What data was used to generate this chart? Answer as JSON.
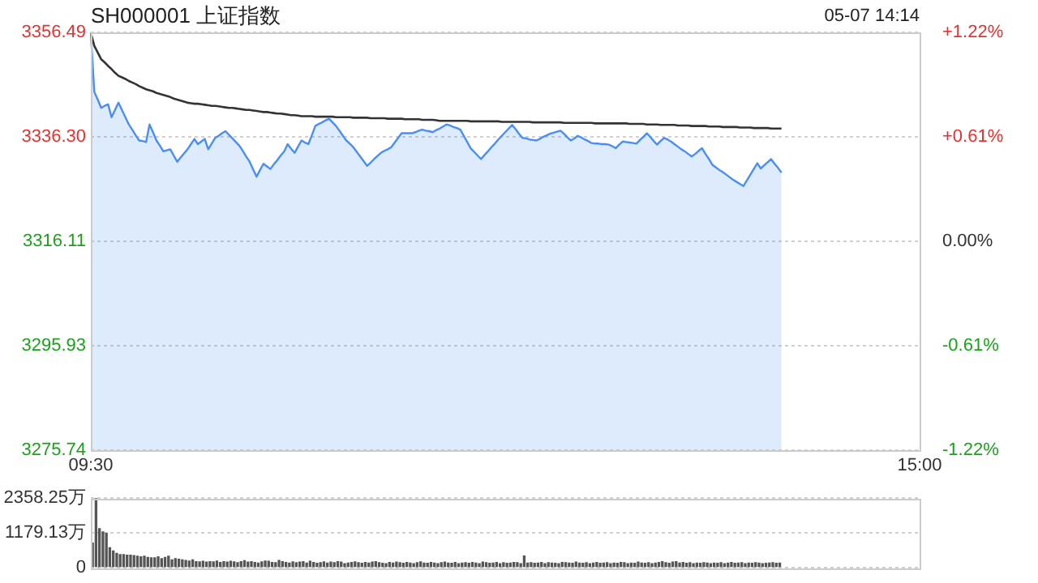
{
  "chart_data": [
    {
      "type": "line",
      "title": "SH000001 上证指数",
      "subtitle": "05-07 14:14",
      "categories": [
        "09:30",
        null,
        null,
        null,
        null,
        null,
        null,
        null,
        null,
        null,
        null,
        null,
        null,
        null,
        null,
        null,
        null,
        null,
        null,
        null,
        null,
        null,
        null,
        null,
        null,
        null,
        null,
        null,
        null,
        null,
        null,
        null,
        null,
        null,
        null,
        null,
        null,
        null,
        null,
        null,
        null,
        null,
        null,
        null,
        null,
        null,
        null,
        null,
        null,
        null,
        null,
        null,
        null,
        null,
        null,
        null,
        null,
        null,
        null,
        null,
        null,
        null,
        null,
        null,
        null,
        null,
        null,
        null,
        null,
        null,
        null,
        null,
        null,
        null,
        null,
        null,
        null,
        null,
        null,
        null,
        null,
        null,
        null,
        null,
        null,
        null,
        null,
        null,
        null,
        null,
        null,
        null,
        null,
        null,
        null,
        null,
        null,
        null,
        null,
        null,
        null,
        null,
        null,
        null,
        null,
        null,
        null,
        null,
        null,
        null,
        null,
        null,
        null,
        null,
        null,
        null,
        null,
        null,
        null,
        null,
        null,
        null,
        null,
        null,
        null,
        null,
        null,
        null,
        null,
        null,
        null,
        null,
        null,
        null,
        null,
        null,
        null,
        null,
        null,
        null,
        null,
        null,
        null,
        null,
        null,
        null,
        null,
        null,
        null,
        null,
        null,
        null,
        null,
        null,
        null,
        null,
        null,
        null,
        null,
        null,
        null,
        null,
        null,
        null,
        null,
        null,
        null,
        null,
        null,
        null,
        null,
        null,
        null,
        null,
        null,
        null,
        null,
        null,
        null,
        null,
        null,
        null,
        null,
        null,
        null,
        null,
        null,
        null,
        null,
        null,
        null,
        null,
        null,
        null,
        null,
        null,
        null,
        null,
        null,
        null,
        null,
        null,
        null,
        null,
        null,
        null,
        null,
        null,
        null,
        null,
        null,
        null,
        null,
        null,
        null,
        null,
        null,
        null,
        null,
        null,
        null,
        null,
        null,
        null,
        null,
        null,
        null,
        null,
        null,
        null,
        null,
        null,
        null,
        null,
        null,
        null,
        null,
        null,
        null,
        null,
        "15:00"
      ],
      "series": [
        {
          "type": "area",
          "color": "#4a8ef5",
          "values": [
            3356.4,
            3345.0,
            3343.5,
            3341.9,
            3342.3,
            3342.6,
            3340.1,
            3341.5,
            3342.9,
            3341.5,
            3340.1,
            3338.7,
            3337.7,
            3336.6,
            3335.6,
            3335.5,
            3335.3,
            3338.7,
            3337.2,
            3335.6,
            3334.6,
            3333.5,
            3333.7,
            3333.9,
            3332.7,
            3331.5,
            3332.3,
            3333.1,
            3333.9,
            3334.9,
            3335.9,
            3334.9,
            3335.4,
            3335.9,
            3333.9,
            3335.0,
            3336.1,
            3336.5,
            3337.0,
            3337.4,
            3336.7,
            3336.0,
            3335.3,
            3334.6,
            3333.6,
            3332.5,
            3331.5,
            3330.0,
            3328.6,
            3329.9,
            3331.1,
            3330.6,
            3330.1,
            3331.0,
            3331.8,
            3332.7,
            3333.5,
            3334.9,
            3334.0,
            3333.2,
            3334.4,
            3335.6,
            3335.2,
            3334.9,
            3336.6,
            3338.4,
            3338.8,
            3339.1,
            3339.5,
            3339.8,
            3339.1,
            3338.4,
            3337.5,
            3336.5,
            3335.6,
            3335.0,
            3334.3,
            3333.4,
            3332.5,
            3331.6,
            3330.7,
            3331.3,
            3332.0,
            3332.6,
            3333.2,
            3333.6,
            3333.9,
            3334.3,
            3335.2,
            3336.1,
            3337.0,
            3337.0,
            3337.0,
            3337.0,
            3337.2,
            3337.5,
            3337.7,
            3337.5,
            3337.4,
            3337.2,
            3337.6,
            3337.9,
            3338.3,
            3338.7,
            3338.5,
            3338.2,
            3338.0,
            3337.7,
            3336.5,
            3335.3,
            3334.1,
            3333.4,
            3332.7,
            3332.0,
            3332.8,
            3333.5,
            3334.3,
            3335.0,
            3335.8,
            3336.5,
            3337.2,
            3337.9,
            3338.6,
            3337.8,
            3336.9,
            3336.1,
            3336.0,
            3335.8,
            3335.7,
            3335.6,
            3335.9,
            3336.3,
            3336.6,
            3336.9,
            3337.1,
            3337.3,
            3337.5,
            3336.9,
            3336.2,
            3335.6,
            3336.0,
            3336.5,
            3336.2,
            3335.8,
            3335.5,
            3335.1,
            3335.0,
            3335.0,
            3334.9,
            3334.9,
            3334.8,
            3334.5,
            3334.1,
            3334.8,
            3335.4,
            3335.3,
            3335.2,
            3335.1,
            3335.0,
            3335.7,
            3336.3,
            3337.0,
            3336.3,
            3335.5,
            3334.8,
            3335.5,
            3336.1,
            3335.8,
            3335.4,
            3334.9,
            3334.4,
            3333.9,
            3333.5,
            3333.0,
            3332.5,
            3333.0,
            3333.6,
            3334.1,
            3333.0,
            3332.0,
            3330.9,
            3330.4,
            3329.9,
            3329.5,
            3329.0,
            3328.5,
            3328.0,
            3327.6,
            3327.2,
            3326.8,
            3327.9,
            3329.0,
            3330.1,
            3331.2,
            3330.2,
            3330.8,
            3331.4,
            3332.0,
            3331.1,
            3330.3,
            3329.4,
            null,
            null,
            null,
            null,
            null,
            null,
            null,
            null,
            null,
            null,
            null,
            null,
            null,
            null,
            null,
            null,
            null,
            null,
            null,
            null,
            null,
            null,
            null,
            null,
            null,
            null,
            null,
            null,
            null,
            null,
            null,
            null,
            null,
            null,
            null,
            null,
            null,
            null,
            null,
            null
          ]
        },
        {
          "type": "line",
          "color": "#333333",
          "values": [
            3356.4,
            3353.9,
            3352.6,
            3351.3,
            3350.7,
            3350.0,
            3349.4,
            3348.7,
            3348.1,
            3347.8,
            3347.5,
            3347.1,
            3346.8,
            3346.5,
            3346.1,
            3345.8,
            3345.5,
            3345.3,
            3345.1,
            3344.8,
            3344.6,
            3344.4,
            3344.2,
            3344.0,
            3343.7,
            3343.5,
            3343.3,
            3343.1,
            3342.9,
            3342.8,
            3342.7,
            3342.7,
            3342.6,
            3342.5,
            3342.4,
            3342.3,
            3342.3,
            3342.2,
            3342.1,
            3342.0,
            3341.9,
            3341.9,
            3341.8,
            3341.7,
            3341.6,
            3341.5,
            3341.5,
            3341.4,
            3341.3,
            3341.2,
            3341.1,
            3341.1,
            3341.0,
            3340.9,
            3340.8,
            3340.8,
            3340.7,
            3340.6,
            3340.5,
            3340.5,
            3340.4,
            3340.3,
            3340.3,
            3340.3,
            3340.3,
            3340.2,
            3340.2,
            3340.2,
            3340.2,
            3340.2,
            3340.2,
            3340.1,
            3340.1,
            3340.1,
            3340.1,
            3340.1,
            3340.0,
            3340.0,
            3340.0,
            3340.0,
            3340.0,
            3339.9,
            3339.9,
            3339.9,
            3339.9,
            3339.9,
            3339.8,
            3339.8,
            3339.8,
            3339.8,
            3339.8,
            3339.7,
            3339.7,
            3339.7,
            3339.7,
            3339.7,
            3339.6,
            3339.6,
            3339.6,
            3339.6,
            3339.5,
            3339.4,
            3339.4,
            3339.4,
            3339.4,
            3339.4,
            3339.4,
            3339.4,
            3339.4,
            3339.4,
            3339.3,
            3339.3,
            3339.3,
            3339.3,
            3339.3,
            3339.3,
            3339.3,
            3339.3,
            3339.3,
            3339.2,
            3339.2,
            3339.2,
            3339.2,
            3339.2,
            3339.2,
            3339.2,
            3339.2,
            3339.2,
            3339.1,
            3339.1,
            3339.1,
            3339.1,
            3339.1,
            3339.1,
            3339.1,
            3339.1,
            3339.1,
            3339.0,
            3339.0,
            3339.0,
            3339.0,
            3339.0,
            3339.0,
            3339.0,
            3339.0,
            3339.0,
            3338.9,
            3338.9,
            3338.9,
            3338.9,
            3338.9,
            3338.9,
            3338.9,
            3338.9,
            3338.9,
            3338.9,
            3338.8,
            3338.8,
            3338.8,
            3338.8,
            3338.8,
            3338.7,
            3338.7,
            3338.7,
            3338.7,
            3338.6,
            3338.6,
            3338.6,
            3338.6,
            3338.6,
            3338.5,
            3338.5,
            3338.5,
            3338.5,
            3338.4,
            3338.4,
            3338.4,
            3338.4,
            3338.4,
            3338.3,
            3338.3,
            3338.3,
            3338.3,
            3338.2,
            3338.2,
            3338.2,
            3338.2,
            3338.2,
            3338.1,
            3338.1,
            3338.1,
            3338.1,
            3338.0,
            3338.0,
            3338.0,
            3338.0,
            3338.0,
            3337.9,
            3337.9,
            3337.9,
            3337.9,
            null,
            null,
            null,
            null,
            null,
            null,
            null,
            null,
            null,
            null,
            null,
            null,
            null,
            null,
            null,
            null,
            null,
            null,
            null,
            null,
            null,
            null,
            null,
            null,
            null,
            null,
            null,
            null,
            null,
            null,
            null,
            null,
            null,
            null,
            null,
            null,
            null,
            null,
            null,
            null
          ]
        }
      ],
      "ylim": [
        3275.74,
        3356.49
      ],
      "yticks": [
        3275.74,
        3295.93,
        3316.11,
        {
          "value": 3336.3,
          "label": "3336.30"
        },
        3356.49
      ],
      "y2lim": [
        -1.22,
        1.22
      ],
      "y2ticks": [
        {
          "value": -1.22,
          "label": "-1.22%"
        },
        {
          "value": -0.61,
          "label": "-0.61%"
        },
        {
          "value": 0,
          "label": "0.00%"
        },
        {
          "value": 0.61,
          "label": "+0.61%"
        },
        {
          "value": 1.22,
          "label": "+1.22%"
        }
      ],
      "grid": "y"
    },
    {
      "type": "bar",
      "color": "#555555",
      "categories": [
        null,
        null,
        null,
        null,
        null,
        null,
        null,
        null,
        null,
        null,
        null,
        null,
        null,
        null,
        null,
        null,
        null,
        null,
        null,
        null,
        null,
        null,
        null,
        null,
        null,
        null,
        null,
        null,
        null,
        null,
        null,
        null,
        null,
        null,
        null,
        null,
        null,
        null,
        null,
        null,
        null,
        null,
        null,
        null,
        null,
        null,
        null,
        null,
        null,
        null,
        null,
        null,
        null,
        null,
        null,
        null,
        null,
        null,
        null,
        null,
        null,
        null,
        null,
        null,
        null,
        null,
        null,
        null,
        null,
        null,
        null,
        null,
        null,
        null,
        null,
        null,
        null,
        null,
        null,
        null,
        null,
        null,
        null,
        null,
        null,
        null,
        null,
        null,
        null,
        null,
        null,
        null,
        null,
        null,
        null,
        null,
        null,
        null,
        null,
        null,
        null,
        null,
        null,
        null,
        null,
        null,
        null,
        null,
        null,
        null,
        null,
        null,
        null,
        null,
        null,
        null,
        null,
        null,
        null,
        null,
        null,
        null,
        null,
        null,
        null,
        null,
        null,
        null,
        null,
        null,
        null,
        null,
        null,
        null,
        null,
        null,
        null,
        null,
        null,
        null,
        null,
        null,
        null,
        null,
        null,
        null,
        null,
        null,
        null,
        null,
        null,
        null,
        null,
        null,
        null,
        null,
        null,
        null,
        null,
        null,
        null,
        null,
        null,
        null,
        null,
        null,
        null,
        null,
        null,
        null,
        null,
        null,
        null,
        null,
        null,
        null,
        null,
        null,
        null,
        null,
        null,
        null,
        null,
        null,
        null,
        null,
        null,
        null,
        null,
        null,
        null,
        null,
        null,
        null,
        null,
        null,
        null,
        null,
        null,
        null,
        null,
        null,
        null,
        null,
        null,
        null,
        null,
        null,
        null,
        null,
        null,
        null,
        null,
        null,
        null,
        null,
        null,
        null,
        null,
        null,
        null,
        null,
        null,
        null,
        null,
        null,
        null,
        null,
        null,
        null,
        null,
        null,
        null,
        null,
        null,
        null,
        null,
        null,
        null,
        null
      ],
      "values": [
        830,
        2350,
        1320,
        1210,
        1160,
        670,
        560,
        480,
        440,
        440,
        420,
        420,
        400,
        380,
        360,
        380,
        340,
        330,
        330,
        360,
        300,
        340,
        380,
        260,
        300,
        280,
        260,
        240,
        220,
        260,
        200,
        190,
        210,
        180,
        200,
        190,
        220,
        170,
        200,
        180,
        210,
        190,
        160,
        200,
        230,
        180,
        200,
        170,
        150,
        190,
        220,
        210,
        170,
        160,
        240,
        200,
        170,
        150,
        190,
        160,
        180,
        200,
        150,
        210,
        170,
        140,
        160,
        190,
        150,
        180,
        160,
        200,
        180,
        130,
        150,
        170,
        190,
        160,
        140,
        170,
        150,
        180,
        200,
        160,
        140,
        130,
        170,
        150,
        180,
        160,
        140,
        170,
        150,
        130,
        160,
        190,
        150,
        140,
        170,
        150,
        130,
        160,
        180,
        150,
        140,
        170,
        130,
        150,
        160,
        140,
        170,
        150,
        130,
        180,
        160,
        140,
        150,
        170,
        130,
        160,
        140,
        150,
        170,
        160,
        130,
        390,
        150,
        160,
        140,
        150,
        170,
        130,
        160,
        150,
        140,
        130,
        170,
        160,
        150,
        140,
        180,
        150,
        140,
        160,
        130,
        150,
        170,
        140,
        150,
        160,
        130,
        150,
        140,
        170,
        160,
        130,
        150,
        140,
        180,
        150,
        140,
        160,
        130,
        150,
        170,
        200,
        160,
        140,
        180,
        200,
        150,
        170,
        140,
        160,
        130,
        150,
        140,
        160,
        150,
        130,
        150,
        140,
        160,
        130,
        150,
        170,
        140,
        150,
        160,
        130,
        150,
        140,
        160,
        150,
        130,
        140,
        150,
        160,
        140,
        150,
        null,
        null,
        null,
        null,
        null,
        null,
        null,
        null,
        null,
        null,
        null,
        null,
        null,
        null,
        null,
        null,
        null,
        null,
        null,
        null,
        null,
        null,
        null,
        null,
        null,
        null,
        null,
        null,
        null,
        null,
        null,
        null,
        null,
        null,
        null,
        null,
        null,
        null,
        null,
        null
      ],
      "ylim": [
        0,
        2358.25
      ],
      "yticks": [
        0,
        {
          "value": 1179.13,
          "label": "1179.13万"
        },
        {
          "value": 2358.25,
          "label": "2358.25万"
        }
      ],
      "grid": "y",
      "tick_labels": "y"
    }
  ]
}
